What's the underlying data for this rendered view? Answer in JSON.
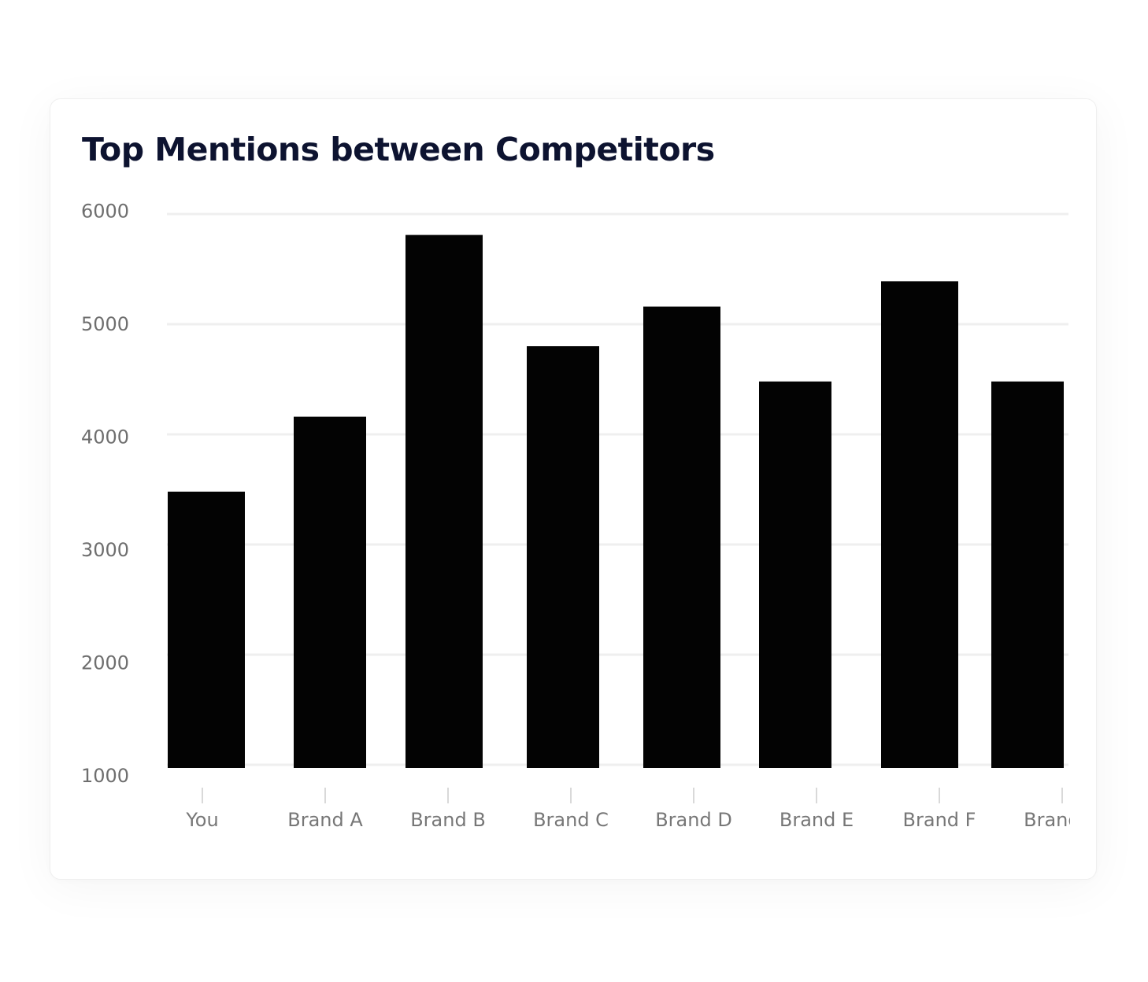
{
  "card": {
    "title": "Top Mentions between Competitors"
  },
  "colors": {
    "bar": "#030303",
    "grid": "#efefef",
    "tick_mark": "#d9d9d9"
  },
  "chart_data": {
    "type": "bar",
    "title": "Top Mentions between Competitors",
    "xlabel": "",
    "ylabel": "",
    "categories": [
      "You",
      "Brand A",
      "Brand B",
      "Brand C",
      "Brand D",
      "Brand E",
      "Brand F",
      "Brand G"
    ],
    "values": [
      3480,
      4160,
      5810,
      4800,
      5160,
      4480,
      5390,
      4480
    ],
    "yticks": [
      1000,
      2000,
      3000,
      4000,
      5000,
      6000
    ],
    "ylim": [
      1000,
      6000
    ],
    "grid": true,
    "legend": "none"
  }
}
